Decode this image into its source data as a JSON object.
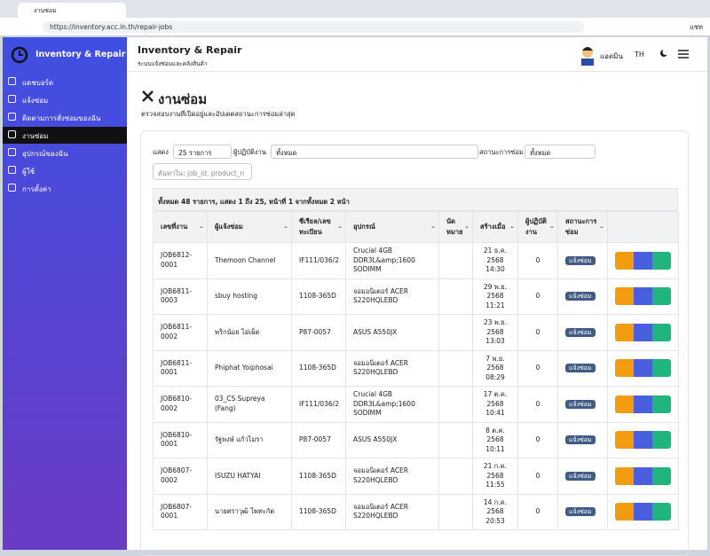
{
  "browser": {
    "tab_title": "งานซ่อม",
    "url": "https://inventory.acc.in.th/repair-jobs",
    "profile": "แชท"
  },
  "sidebar": {
    "brand": "Inventory & Repair",
    "menu": [
      "แดชบอร์ด",
      "แจ้งซ่อม",
      "ติดตามการสั่งซ่อมของฉัน",
      "งานซ่อม",
      "อุปกรณ์ของฉัน",
      "ผู้ใช้",
      "การตั้งค่า"
    ]
  },
  "header": {
    "title": "Inventory & Repair",
    "subtitle": "ระบบแจ้งซ่อมและคลังสินค้า",
    "user": "แอดมิน",
    "lang": "TH"
  },
  "page": {
    "title": "งานซ่อม",
    "subtitle": "ตรวจสอบงานที่เปิดอยู่และอัปเดตสถานะการซ่อมล่าสุด"
  },
  "filters": {
    "show_label": "แสดง",
    "page_size": "25 รายการ",
    "technician_label": "ผู้ปฏิบัติงาน",
    "technician": "ทั้งหมด",
    "status_label": "สถานะการซ่อม",
    "status": "ทั้งหมด",
    "search_placeholder": "ค้นหาใน: job_id, product_n"
  },
  "table": {
    "summary": "ทั้งหมด 48 รายการ, แสดง 1 ถึง 25, หน้าที่ 1 จากทั้งหมด 2 หน้า",
    "headers": [
      "เลขที่งาน",
      "ผู้แจ้งซ่อม",
      "ซีเรียล/เลขทะเบียน",
      "อุปกรณ์",
      "นัดหมาย",
      "สร้างเมื่อ",
      "ผู้ปฏิบัติงาน",
      "สถานะการซ่อม"
    ],
    "rows": [
      {
        "job_id": "JOB6812-0001",
        "reporter": "Themoon Channel",
        "serial": "IF111/036/2",
        "device": "Crucial 4GB DDR3L&amp;1600 SODIMM",
        "created": "21 ธ.ค. 2568 14:30",
        "technician": "0",
        "status": "แจ้งซ่อม"
      },
      {
        "job_id": "JOB6811-0003",
        "reporter": "sbuy hosting",
        "serial": "1108-365D",
        "device": "จอมอนิเตอร์ ACER S220HQLEBD",
        "created": "29 พ.ย. 2568 11:21",
        "technician": "0",
        "status": "แจ้งซ่อม"
      },
      {
        "job_id": "JOB6811-0002",
        "reporter": "พริกน้อย ไม่เผ็ด",
        "serial": "P87-0057",
        "device": "ASUS A550JX",
        "created": "23 พ.ย. 2568 13:03",
        "technician": "0",
        "status": "แจ้งซ่อม"
      },
      {
        "job_id": "JOB6811-0001",
        "reporter": "Phiphat Yoiphosai",
        "serial": "1108-365D",
        "device": "จอมอนิเตอร์ ACER S220HQLEBD",
        "created": "7 พ.ย. 2568 08:29",
        "technician": "0",
        "status": "แจ้งซ่อม"
      },
      {
        "job_id": "JOB6810-0002",
        "reporter": "03_CS Supreya (Fang)",
        "serial": "IF111/036/2",
        "device": "Crucial 4GB DDR3L&amp;1600 SODIMM",
        "created": "17 ต.ค. 2568 10:41",
        "technician": "0",
        "status": "แจ้งซ่อม"
      },
      {
        "job_id": "JOB6810-0001",
        "reporter": "รัฐพงษ์ แก้วไมรา",
        "serial": "P87-0057",
        "device": "ASUS A550JX",
        "created": "8 ต.ค. 2568 10:11",
        "technician": "0",
        "status": "แจ้งซ่อม"
      },
      {
        "job_id": "JOB6807-0002",
        "reporter": "ISUZU HATYAI",
        "serial": "1108-365D",
        "device": "จอมอนิเตอร์ ACER S220HQLEBD",
        "created": "21 ก.ค. 2568 11:55",
        "technician": "0",
        "status": "แจ้งซ่อม"
      },
      {
        "job_id": "JOB6807-0001",
        "reporter": "นายศราวุฒิ ไพทะกัต",
        "serial": "1108-365D",
        "device": "จอมอนิเตอร์ ACER S220HQLEBD",
        "created": "14 ก.ค. 2568 20:53",
        "technician": "0",
        "status": "แจ้งซ่อม"
      }
    ]
  }
}
